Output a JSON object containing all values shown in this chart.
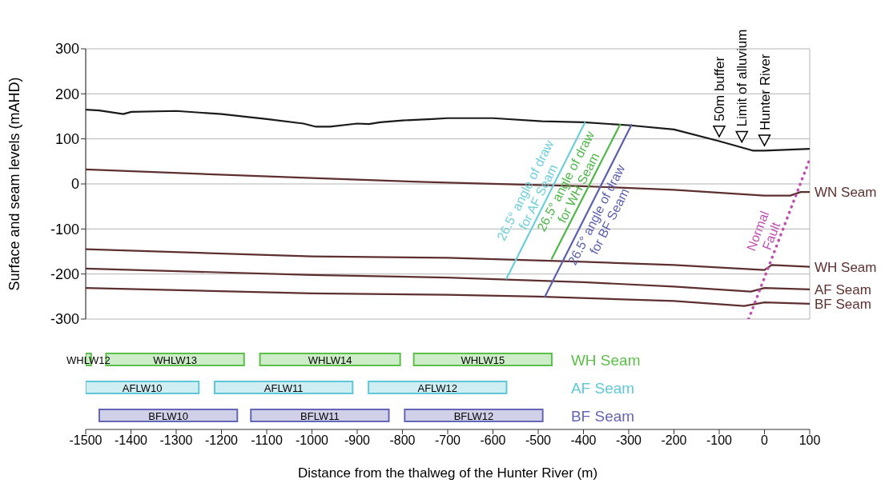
{
  "chart_data": [
    {
      "type": "line",
      "ylabel": "Surface and seam levels (mAHD)",
      "xlim": [
        -1500,
        100
      ],
      "xticks": [
        -1500,
        -1400,
        -1300,
        -1200,
        -1100,
        -1000,
        -900,
        -800,
        -700,
        -600,
        -500,
        -400,
        -300,
        -200,
        -100,
        0,
        100
      ],
      "ylim": [
        -300,
        300
      ],
      "yticks": [
        -300,
        -200,
        -100,
        0,
        100,
        200,
        300
      ],
      "grid": true,
      "tick_labels": "y",
      "series": [
        {
          "color": "#1a1a1a",
          "x": [
            -1500,
            -1470,
            -1417,
            -1399,
            -1300,
            -1200,
            -1100,
            -1019,
            -991,
            -960,
            -900,
            -874,
            -849,
            -800,
            -734,
            -700,
            -600,
            -492,
            -400,
            -297,
            -200,
            -100,
            -26,
            0,
            100
          ],
          "values": [
            165,
            163,
            155,
            160,
            162,
            155,
            144,
            134,
            127,
            127,
            134,
            133,
            137,
            141,
            144,
            146,
            146,
            139,
            137,
            130,
            121,
            95,
            74,
            74,
            78
          ]
        },
        {
          "name": "WN Seam",
          "color": "#5e2f2f",
          "x": [
            -1500,
            -1000,
            -800,
            -700,
            -400,
            -200,
            0,
            57,
            80,
            100
          ],
          "values": [
            32,
            13,
            6,
            3,
            -5,
            -13,
            -26,
            -26,
            -18,
            -18
          ]
        },
        {
          "name": "WH Seam",
          "color": "#5e2f2f",
          "x": [
            -1500,
            -1000,
            -700,
            -400,
            -200,
            0,
            16,
            100
          ],
          "values": [
            -145,
            -161,
            -164,
            -173,
            -180,
            -191,
            -180,
            -184
          ]
        },
        {
          "name": "AF Seam",
          "color": "#5e2f2f",
          "x": [
            -1500,
            -1000,
            -700,
            -400,
            -200,
            -30,
            0,
            100
          ],
          "values": [
            -188,
            -202,
            -208,
            -218,
            -228,
            -239,
            -231,
            -234
          ]
        },
        {
          "name": "BF Seam",
          "color": "#5e2f2f",
          "x": [
            -1500,
            -1000,
            -700,
            -500,
            -200,
            -45,
            0,
            100
          ],
          "values": [
            -231,
            -243,
            -246,
            -250,
            -260,
            -271,
            -263,
            -266
          ]
        },
        {
          "name": "26.5° angle of draw\nfor AF Seam",
          "color": "#6ccfdc",
          "x": [
            -570,
            -397
          ],
          "values": [
            -210,
            136
          ]
        },
        {
          "name": "26.5° angle of draw\nfor WH Seam",
          "color": "#4db848",
          "x": [
            -470,
            -319
          ],
          "values": [
            -166,
            132
          ]
        },
        {
          "name": "26.5° angle of draw\nfor BF Seam",
          "color": "#5b5fb0",
          "x": [
            -485,
            -294
          ],
          "values": [
            -250,
            131
          ]
        },
        {
          "name": "Normal\nFault",
          "color": "#c050b0",
          "line_style": "dotted",
          "x": [
            -35,
            100
          ],
          "values": [
            -300,
            55
          ]
        }
      ],
      "annotations": [
        {
          "text": "50m buffer",
          "x": -100,
          "y": 98
        },
        {
          "text": "Limit of alluvium",
          "x": -50,
          "y": 86
        },
        {
          "text": "Hunter River",
          "x": 0,
          "y": 78
        }
      ]
    },
    {
      "type": "bar",
      "orientation": "horizontal",
      "xlabel": "Distance from the thalweg of the Hunter River (m)",
      "categories": [
        "WH Seam",
        "AF Seam",
        "BF Seam"
      ],
      "xlim": [
        -1500,
        100
      ],
      "xticks": [
        -1500,
        -1400,
        -1300,
        -1200,
        -1100,
        -1000,
        -900,
        -800,
        -700,
        -600,
        -500,
        -400,
        -300,
        -200,
        -100,
        0,
        100
      ],
      "series": [
        {
          "colors": [
            "#5bbf4a",
            "#5ec8d8",
            "#6466b5"
          ],
          "base": [
            -1500,
            -1500,
            -1470
          ],
          "values": [
            12,
            250,
            305
          ],
          "value_labels": [
            "WHLW12",
            "AFLW10",
            "BFLW10"
          ]
        },
        {
          "colors": [
            "#5bbf4a",
            "#5ec8d8",
            "#6466b5"
          ],
          "base": [
            -1455,
            -1215,
            -1135
          ],
          "values": [
            305,
            305,
            305
          ],
          "value_labels": [
            "WHLW13",
            "AFLW11",
            "BFLW11"
          ]
        },
        {
          "colors": [
            "#5bbf4a",
            "#5ec8d8",
            "#6466b5"
          ],
          "base": [
            -1115,
            -875,
            -795
          ],
          "values": [
            310,
            305,
            305
          ],
          "value_labels": [
            "WHLW14",
            "AFLW12",
            "BFLW12"
          ]
        },
        {
          "colors": [
            "#5bbf4a",
            null,
            null
          ],
          "base": [
            -775,
            null,
            null
          ],
          "values": [
            305,
            null,
            null
          ],
          "value_labels": [
            "WHLW15",
            null,
            null
          ]
        }
      ]
    }
  ]
}
